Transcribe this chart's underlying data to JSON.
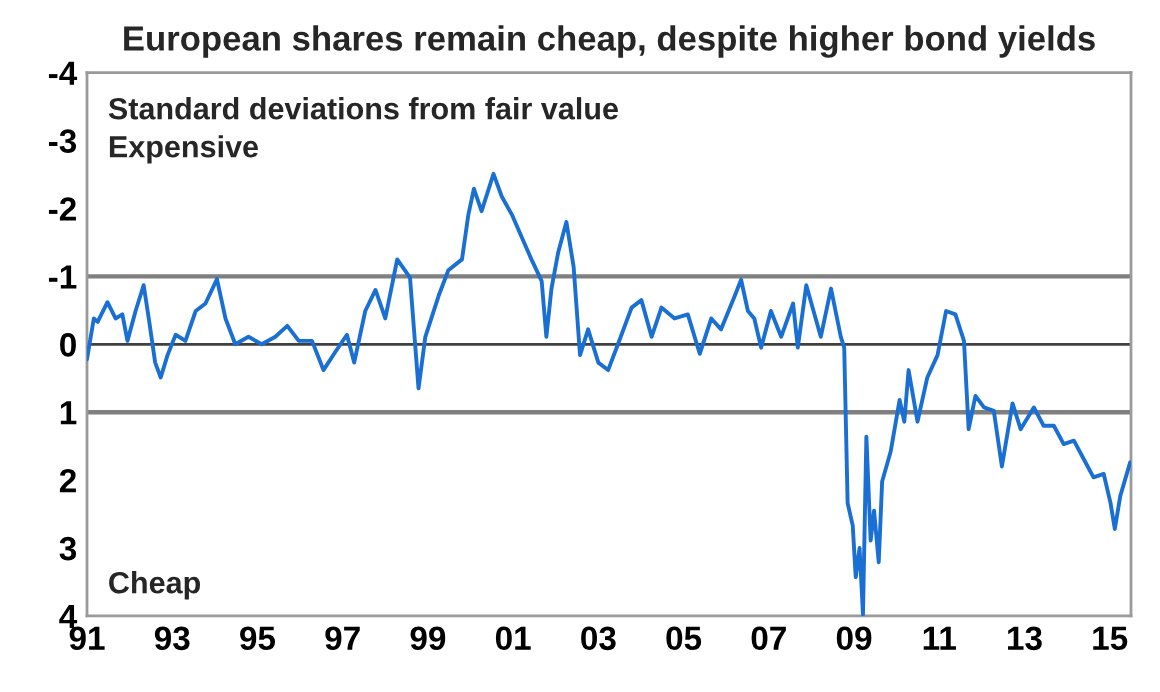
{
  "chart_data": {
    "type": "line",
    "title": "European shares remain cheap, despite higher bond yields",
    "annotations": [
      "Standard deviations from fair value",
      "Expensive",
      "Cheap"
    ],
    "series": [
      {
        "color": "#1a6fd4",
        "x": [
          1991.0,
          1991.16,
          1991.25,
          1991.48,
          1991.67,
          1991.83,
          1991.95,
          1992.14,
          1992.33,
          1992.45,
          1992.6,
          1992.73,
          1992.89,
          1993.08,
          1993.31,
          1993.55,
          1993.78,
          1994.05,
          1994.25,
          1994.48,
          1994.79,
          1995.1,
          1995.42,
          1995.7,
          1995.97,
          1996.28,
          1996.55,
          1996.83,
          1997.1,
          1997.27,
          1997.53,
          1997.77,
          1998.0,
          1998.28,
          1998.58,
          1998.78,
          1998.94,
          1999.25,
          1999.48,
          1999.8,
          1999.95,
          2000.08,
          2000.26,
          2000.54,
          2000.73,
          2000.97,
          2001.2,
          2001.43,
          2001.67,
          2001.78,
          2001.9,
          2002.06,
          2002.25,
          2002.42,
          2002.57,
          2002.76,
          2003.0,
          2003.23,
          2003.46,
          2003.78,
          2004.01,
          2004.25,
          2004.48,
          2004.79,
          2005.1,
          2005.38,
          2005.65,
          2005.88,
          2006.2,
          2006.35,
          2006.51,
          2006.66,
          2006.82,
          2007.05,
          2007.29,
          2007.57,
          2007.68,
          2007.88,
          2008.22,
          2008.46,
          2008.69,
          2008.77,
          2008.85,
          2008.97,
          2009.04,
          2009.13,
          2009.21,
          2009.29,
          2009.39,
          2009.47,
          2009.58,
          2009.66,
          2009.86,
          2010.07,
          2010.18,
          2010.28,
          2010.49,
          2010.72,
          2010.96,
          2011.16,
          2011.38,
          2011.58,
          2011.69,
          2011.85,
          2012.05,
          2012.28,
          2012.47,
          2012.72,
          2012.91,
          2013.22,
          2013.45,
          2013.69,
          2013.92,
          2014.16,
          2014.39,
          2014.62,
          2014.86,
          2015.02,
          2015.12,
          2015.25,
          2015.48
        ],
        "values": [
          0.22,
          -0.38,
          -0.33,
          -0.62,
          -0.38,
          -0.44,
          -0.05,
          -0.49,
          -0.87,
          -0.38,
          0.27,
          0.49,
          0.16,
          -0.14,
          -0.05,
          -0.49,
          -0.6,
          -0.96,
          -0.38,
          0.0,
          -0.11,
          0.0,
          -0.11,
          -0.27,
          -0.05,
          -0.05,
          0.38,
          0.11,
          -0.14,
          0.27,
          -0.49,
          -0.8,
          -0.38,
          -1.25,
          -0.98,
          0.65,
          -0.11,
          -0.71,
          -1.09,
          -1.25,
          -1.91,
          -2.29,
          -1.96,
          -2.51,
          -2.18,
          -1.91,
          -1.58,
          -1.25,
          -0.93,
          -0.11,
          -0.82,
          -1.36,
          -1.8,
          -1.14,
          0.16,
          -0.22,
          0.27,
          0.38,
          0.0,
          -0.54,
          -0.65,
          -0.11,
          -0.54,
          -0.38,
          -0.44,
          0.14,
          -0.38,
          -0.22,
          -0.71,
          -0.95,
          -0.49,
          -0.38,
          0.05,
          -0.49,
          -0.11,
          -0.6,
          0.05,
          -0.87,
          -0.11,
          -0.82,
          -0.11,
          0.05,
          2.34,
          2.67,
          3.43,
          3.0,
          3.98,
          1.36,
          2.89,
          2.45,
          3.21,
          2.02,
          1.58,
          0.82,
          1.14,
          0.38,
          1.14,
          0.49,
          0.16,
          -0.49,
          -0.44,
          -0.05,
          1.25,
          0.76,
          0.93,
          0.98,
          1.8,
          0.87,
          1.25,
          0.93,
          1.2,
          1.2,
          1.47,
          1.42,
          1.69,
          1.96,
          1.91,
          2.34,
          2.72,
          2.23,
          1.74
        ]
      }
    ],
    "xlim": [
      1991,
      2015.5
    ],
    "xticks": [
      {
        "value": 1991,
        "label": "91"
      },
      {
        "value": 1993,
        "label": "93"
      },
      {
        "value": 1995,
        "label": "95"
      },
      {
        "value": 1997,
        "label": "97"
      },
      {
        "value": 1999,
        "label": "99"
      },
      {
        "value": 2001,
        "label": "01"
      },
      {
        "value": 2003,
        "label": "03"
      },
      {
        "value": 2005,
        "label": "05"
      },
      {
        "value": 2007,
        "label": "07"
      },
      {
        "value": 2009,
        "label": "09"
      },
      {
        "value": 2011,
        "label": "11"
      },
      {
        "value": 2013,
        "label": "13"
      },
      {
        "value": 2015,
        "label": "15"
      }
    ],
    "ylim": [
      4,
      -4
    ],
    "yticks": [
      -4,
      -3,
      -2,
      -1,
      0,
      1,
      2,
      3,
      4
    ],
    "ref_lines": [
      {
        "axis": "y",
        "value": -1,
        "color": "#7f7f7f"
      },
      {
        "axis": "y",
        "value": 0,
        "color": "#404040"
      },
      {
        "axis": "y",
        "value": 1,
        "color": "#7f7f7f"
      }
    ],
    "grid": false,
    "legend": false,
    "marker": "none",
    "line_style": "solid"
  }
}
